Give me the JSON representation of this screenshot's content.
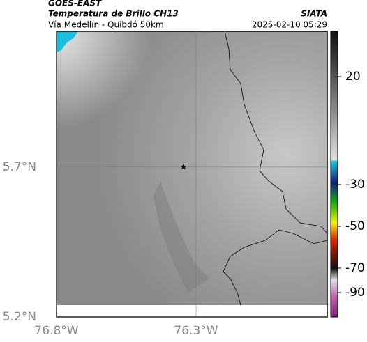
{
  "header": {
    "satellite": "GOES-EAST",
    "product": "Temperatura de Brillo CH13",
    "source": "SIATA",
    "region": "Vía Medellín - Quibdó 50km",
    "timestamp": "2025-02-10 05:29"
  },
  "chart_data": {
    "type": "map",
    "xlim": [
      -76.8,
      -75.83
    ],
    "ylim": [
      5.2,
      6.153
    ],
    "xticks": [
      {
        "value": -76.8,
        "label": "76.8°W"
      },
      {
        "value": -76.3,
        "label": "76.3°W"
      }
    ],
    "yticks": [
      {
        "value": 5.2,
        "label": "5.2°N"
      },
      {
        "value": 5.7,
        "label": "5.7°N"
      }
    ],
    "grid": true,
    "marker": {
      "lon": -76.345,
      "lat": 5.7
    },
    "colorbar_ticks": [
      20,
      -30,
      -50,
      -70,
      -90
    ]
  }
}
